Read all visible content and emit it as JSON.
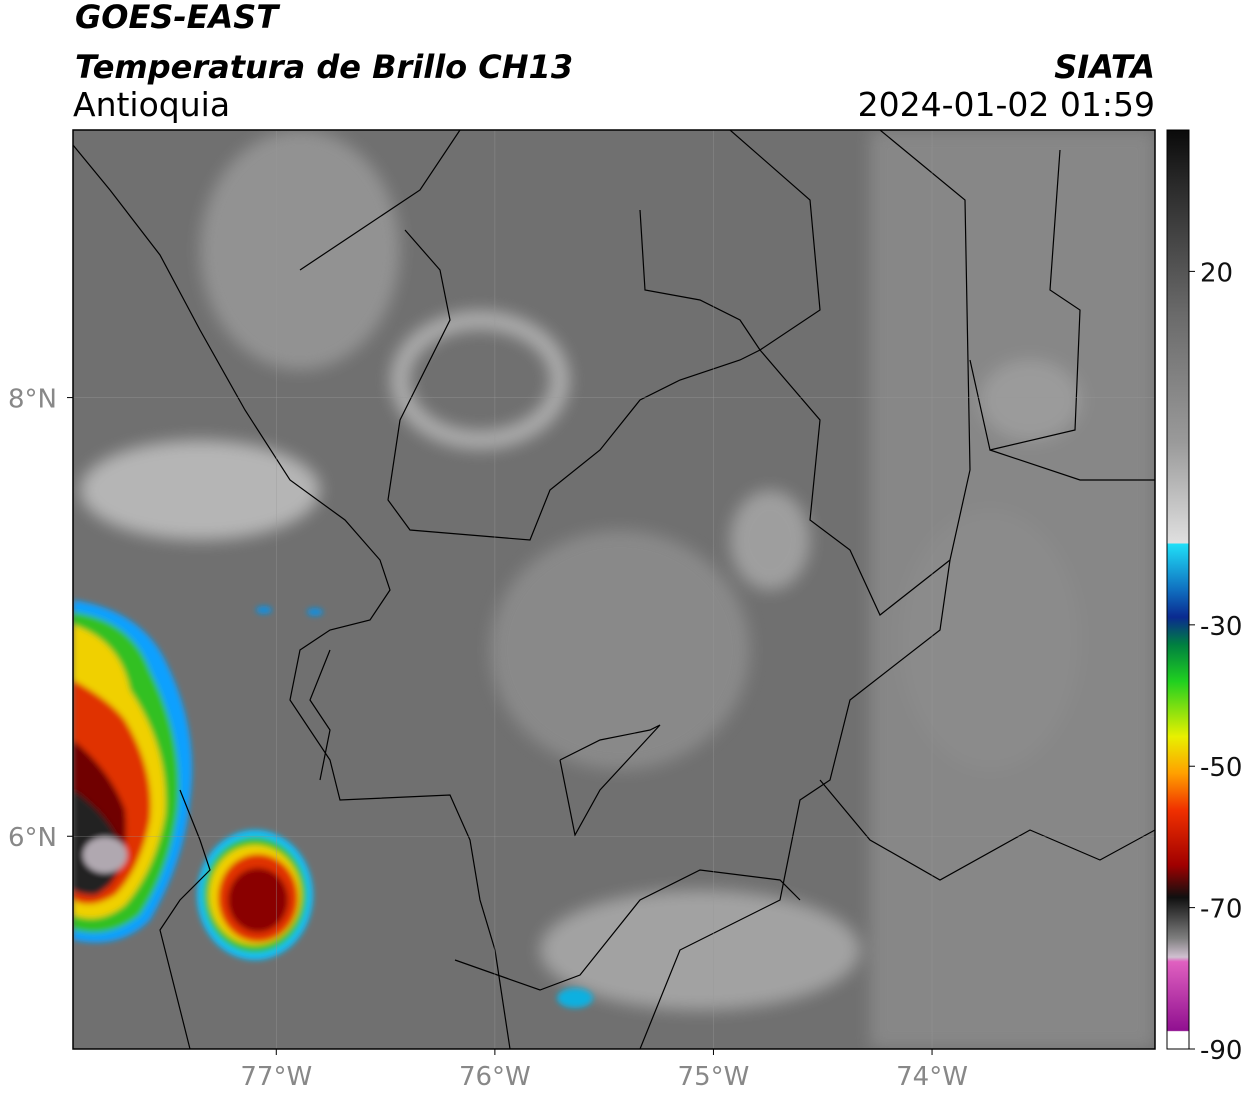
{
  "header": {
    "satellite": "GOES-EAST",
    "product": "Temperatura de Brillo CH13",
    "region": "Antioquia",
    "source": "SIATA",
    "datetime": "2024-01-02 01:59"
  },
  "map": {
    "xlim": [
      -77.93,
      -72.98
    ],
    "ylim": [
      5.03,
      9.22
    ],
    "xticks": [
      {
        "value": -77,
        "label": "77°W"
      },
      {
        "value": -76,
        "label": "76°W"
      },
      {
        "value": -75,
        "label": "75°W"
      },
      {
        "value": -74,
        "label": "74°W"
      }
    ],
    "yticks": [
      {
        "value": 6,
        "label": "6°N"
      },
      {
        "value": 8,
        "label": "8°N"
      }
    ],
    "grid": true
  },
  "colorbar": {
    "clim": [
      -90,
      40
    ],
    "ticks": [
      20,
      -30,
      -50,
      -70,
      -90
    ]
  }
}
